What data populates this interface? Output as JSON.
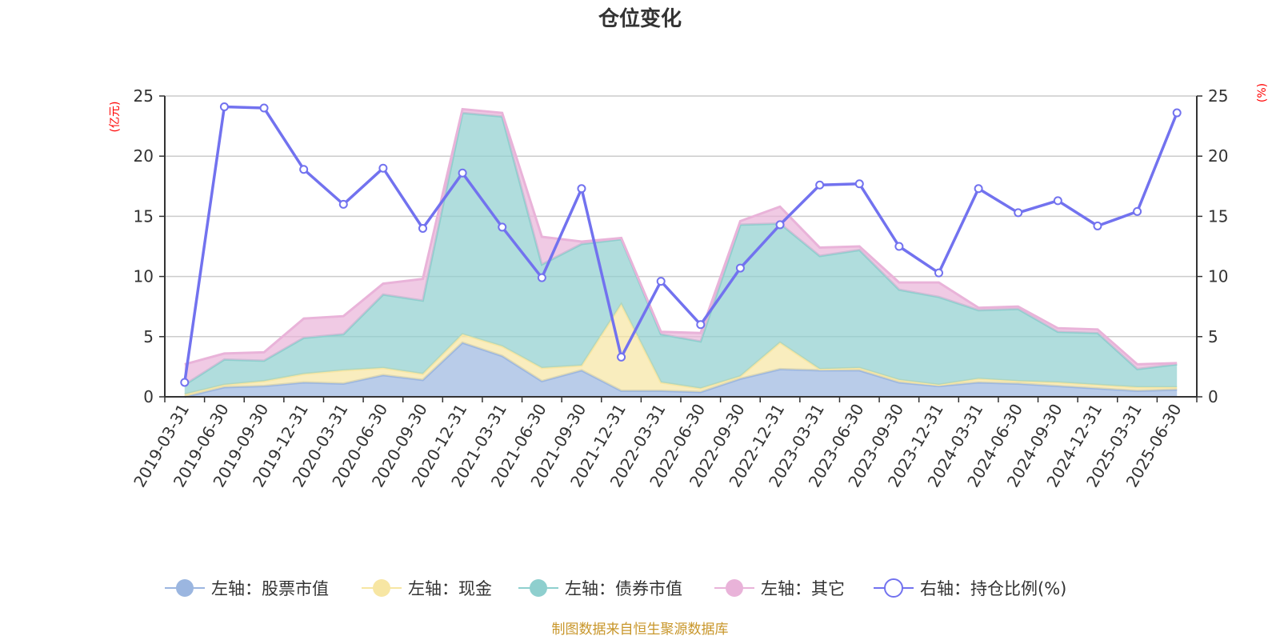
{
  "chart_data": {
    "type": "area",
    "title": "仓位变化",
    "left_axis_unit": "(亿元)",
    "right_axis_unit": "(%)",
    "ylim_left": [
      0,
      25
    ],
    "ylim_right": [
      0,
      25
    ],
    "yticks": [
      0,
      5,
      10,
      15,
      20,
      25
    ],
    "categories": [
      "2019-03-31",
      "2019-06-30",
      "2019-09-30",
      "2019-12-31",
      "2020-03-31",
      "2020-06-30",
      "2020-09-30",
      "2020-12-31",
      "2021-03-31",
      "2021-06-30",
      "2021-09-30",
      "2021-12-31",
      "2022-03-31",
      "2022-06-30",
      "2022-09-30",
      "2022-12-31",
      "2023-03-31",
      "2023-06-30",
      "2023-09-30",
      "2023-12-31",
      "2024-03-31",
      "2024-06-30",
      "2024-09-30",
      "2024-12-31",
      "2025-03-31",
      "2025-06-30"
    ],
    "series": [
      {
        "name": "左轴：股票市值",
        "axis": "left",
        "stack": true,
        "color": "#9bb6e0",
        "values": [
          0.0,
          0.8,
          0.9,
          1.2,
          1.1,
          1.8,
          1.4,
          4.5,
          3.4,
          1.3,
          2.2,
          0.5,
          0.5,
          0.4,
          1.5,
          2.3,
          2.2,
          2.2,
          1.2,
          0.9,
          1.2,
          1.1,
          0.9,
          0.7,
          0.5,
          0.6
        ]
      },
      {
        "name": "左轴：现金",
        "axis": "left",
        "stack": true,
        "color": "#f7e6a3",
        "values": [
          0.2,
          0.2,
          0.4,
          0.7,
          1.1,
          0.6,
          0.5,
          0.7,
          0.8,
          1.1,
          0.4,
          7.2,
          0.7,
          0.3,
          0.2,
          2.2,
          0.1,
          0.2,
          0.2,
          0.1,
          0.3,
          0.2,
          0.3,
          0.3,
          0.3,
          0.2
        ]
      },
      {
        "name": "左轴：债券市值",
        "axis": "left",
        "stack": true,
        "color": "#8ecfce",
        "values": [
          0.8,
          2.1,
          1.7,
          3.0,
          3.0,
          6.1,
          6.1,
          18.4,
          19.1,
          8.6,
          10.1,
          5.4,
          4.0,
          3.9,
          12.6,
          9.9,
          9.4,
          9.8,
          7.5,
          7.3,
          5.7,
          6.0,
          4.2,
          4.3,
          1.5,
          1.9
        ]
      },
      {
        "name": "左轴：其它",
        "axis": "left",
        "stack": true,
        "color": "#e9b3d9",
        "values": [
          1.7,
          0.5,
          0.7,
          1.6,
          1.5,
          0.9,
          1.8,
          0.3,
          0.3,
          2.3,
          0.2,
          0.1,
          0.2,
          0.7,
          0.3,
          1.4,
          0.7,
          0.3,
          0.6,
          1.2,
          0.2,
          0.2,
          0.3,
          0.3,
          0.4,
          0.1
        ]
      },
      {
        "name": "右轴：持仓比例(%)",
        "axis": "right",
        "stack": false,
        "color": "#7272ef",
        "values": [
          1.2,
          24.1,
          24.0,
          18.9,
          16.0,
          19.0,
          14.0,
          18.6,
          14.1,
          9.9,
          17.3,
          3.3,
          9.6,
          6.0,
          10.7,
          14.3,
          17.6,
          17.7,
          12.5,
          10.3,
          17.3,
          15.3,
          16.3,
          14.2,
          15.4,
          23.6
        ]
      }
    ],
    "source_note": "制图数据来自恒生聚源数据库"
  }
}
